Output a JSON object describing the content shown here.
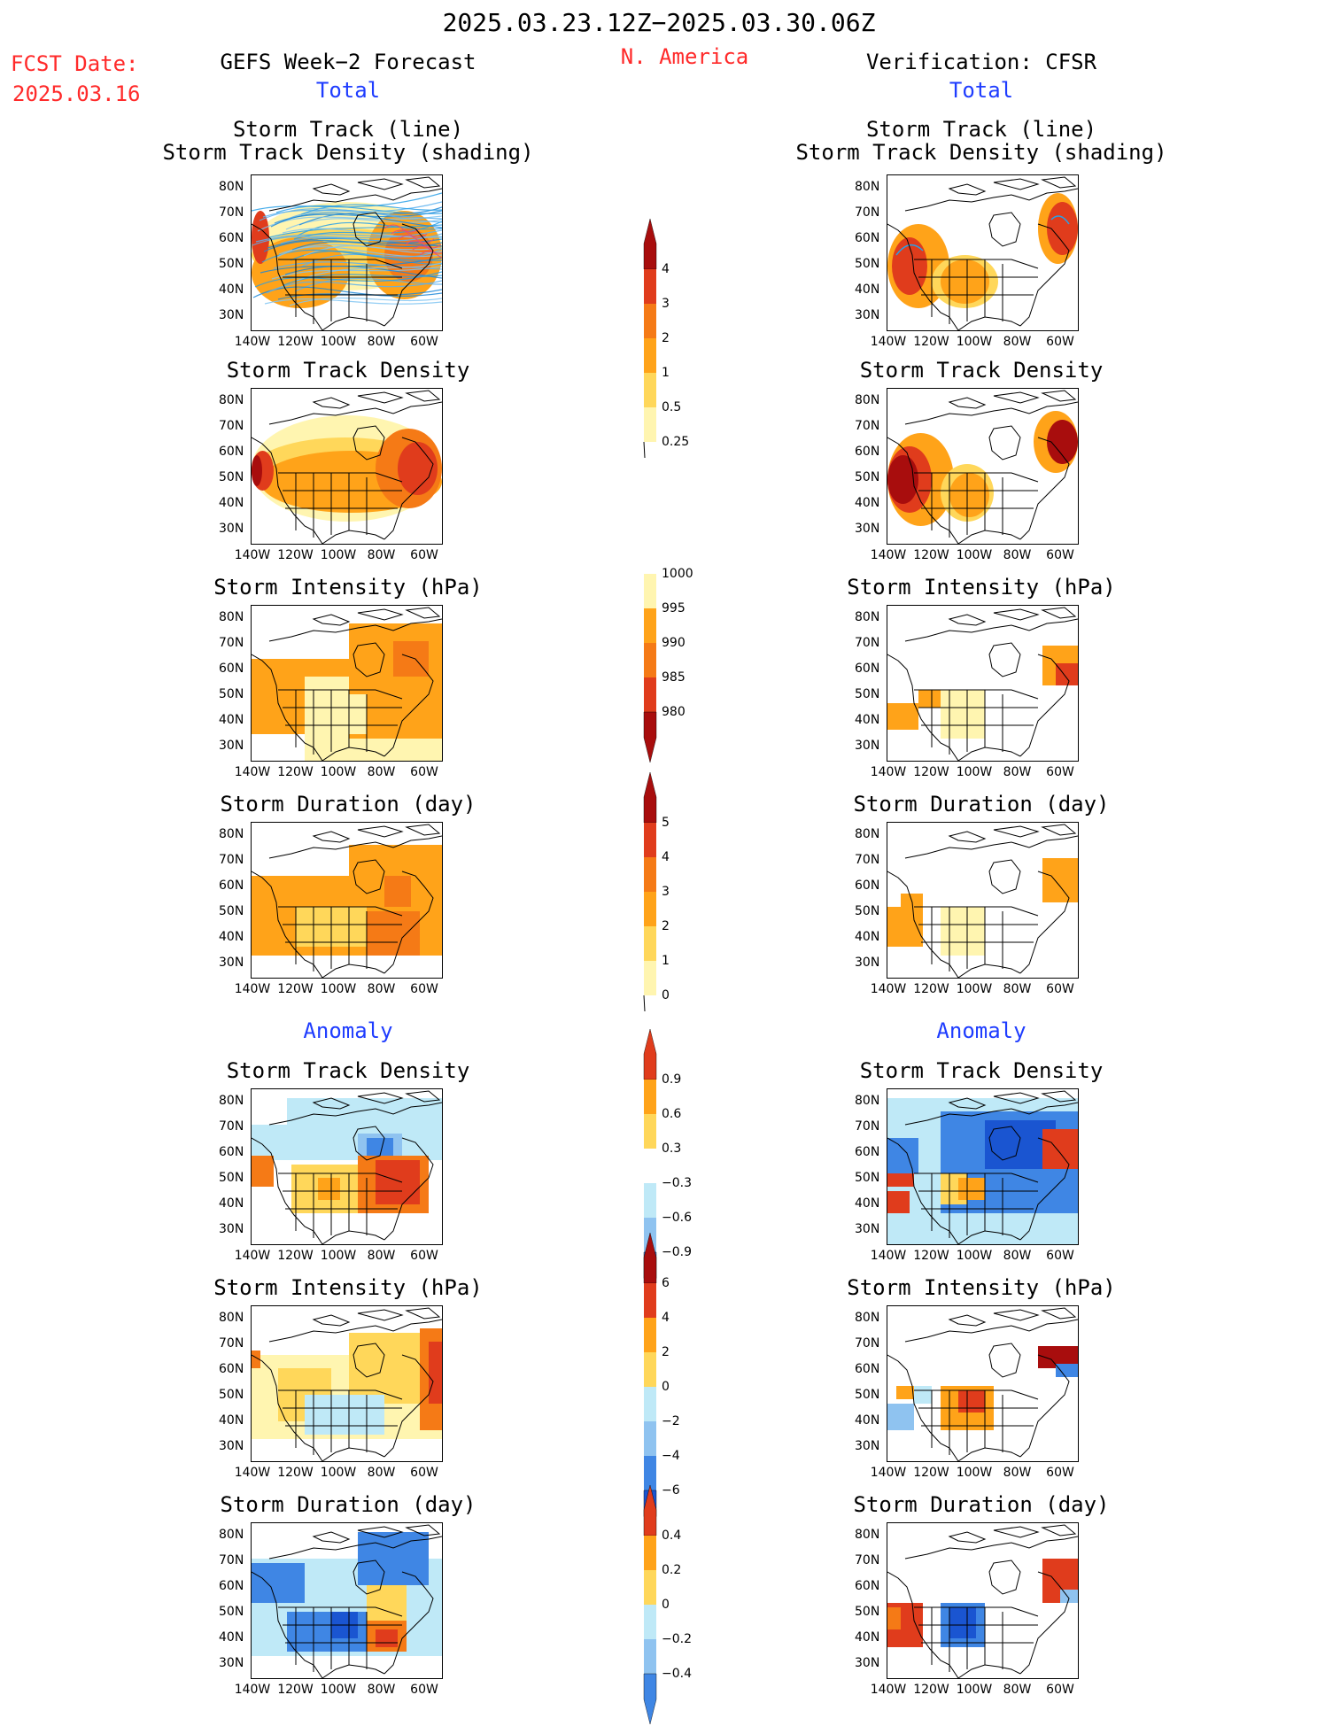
{
  "header": {
    "date_range": "2025.03.23.12Z−2025.03.30.06Z",
    "fcst_label": "FCST Date:",
    "fcst_date": "2025.03.16",
    "left_title": "GEFS Week−2 Forecast",
    "region": "N. America",
    "right_title": "Verification: CFSR",
    "total_left": "Total",
    "total_right": "Total",
    "anomaly_left": "Anomaly",
    "anomaly_right": "Anomaly"
  },
  "panel_titles": {
    "track_line": "Storm Track (line)",
    "track_shading": "Storm Track Density (shading)",
    "density": "Storm Track Density",
    "intensity": "Storm Intensity (hPa)",
    "duration": "Storm Duration (day)"
  },
  "axes": {
    "lat_ticks": [
      "80N",
      "70N",
      "60N",
      "50N",
      "40N",
      "30N"
    ],
    "lon_ticks": [
      "140W",
      "120W",
      "100W",
      "80W",
      "60W"
    ]
  },
  "colorbars": {
    "density_total": [
      "4",
      "3",
      "2",
      "1",
      "0.5",
      "0.25"
    ],
    "intensity_total": [
      "1000",
      "995",
      "990",
      "985",
      "980"
    ],
    "duration_total": [
      "5",
      "4",
      "3",
      "2",
      "1",
      "0"
    ],
    "density_anom": [
      "0.9",
      "0.6",
      "0.3",
      "−0.3",
      "−0.6",
      "−0.9"
    ],
    "intensity_anom": [
      "6",
      "4",
      "2",
      "0",
      "−2",
      "−4",
      "−6"
    ],
    "duration_anom": [
      "0.4",
      "0.2",
      "0",
      "−0.2",
      "−0.4"
    ]
  },
  "colors": {
    "header_red": "#ff2a2a",
    "anomaly_blue": "#1e3cff",
    "light_yellow": "#fff5b0",
    "yellow": "#ffd75a",
    "orange": "#ffa319",
    "dark_orange": "#f57a16",
    "red": "#e03c1c",
    "dark_red": "#a80d0d",
    "light_blue": "#bfe9f7",
    "mid_blue": "#8fc3f0",
    "blue": "#3f86e4",
    "dark_blue": "#1a55d1",
    "track_line": "#2aa0e6"
  }
}
